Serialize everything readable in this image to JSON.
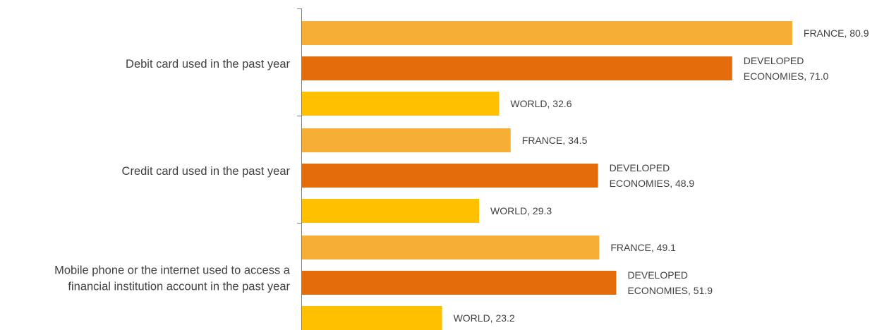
{
  "chart_data": {
    "type": "bar",
    "orientation": "horizontal",
    "categories": [
      "Debit card used in the past year",
      "Credit card used in the past year",
      "Mobile phone or the internet used to access a financial institution account in the past year"
    ],
    "category_label_lines": [
      [
        "Debit card used in the past year"
      ],
      [
        "Credit card used in the past year"
      ],
      [
        "Mobile phone or the internet used to access a",
        "financial institution account in the past year"
      ]
    ],
    "series": [
      {
        "name": "FRANCE",
        "label_lines": [
          "FRANCE, "
        ],
        "color": "#F6AE34",
        "values": [
          80.9,
          34.5,
          49.1
        ],
        "value_labels": [
          "80.9",
          "34.5",
          "49.1"
        ]
      },
      {
        "name": "DEVELOPED ECONOMIES",
        "label_lines": [
          "DEVELOPED",
          "ECONOMIES, "
        ],
        "color": "#E46C0A",
        "values": [
          71.0,
          48.9,
          51.9
        ],
        "value_labels": [
          "71.0",
          "48.9",
          "51.9"
        ]
      },
      {
        "name": "WORLD",
        "label_lines": [
          "WORLD, "
        ],
        "color": "#FFC000",
        "values": [
          32.6,
          29.3,
          23.2
        ],
        "value_labels": [
          "32.6",
          "29.3",
          "23.2"
        ]
      }
    ],
    "xlim": [
      0,
      85
    ],
    "grid": false,
    "legend": "none",
    "title": "",
    "xlabel": "",
    "ylabel": ""
  }
}
